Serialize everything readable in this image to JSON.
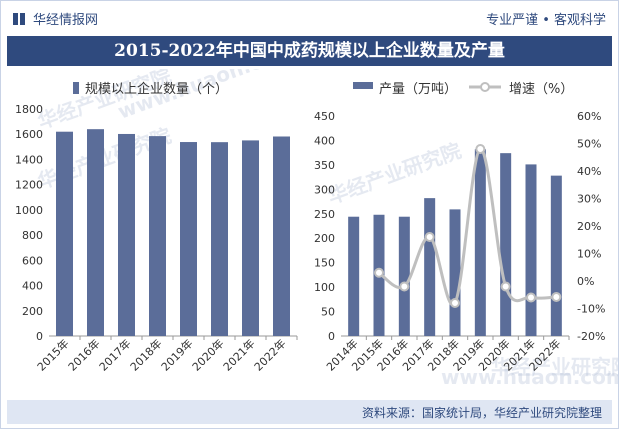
{
  "header": {
    "brand": "华经情报网",
    "slogan": "专业严谨 • 客观科学"
  },
  "title": "2015-2022年中国中成药规模以上企业数量及产量",
  "watermark": [
    "华经产业研究院",
    "www.huaon.com"
  ],
  "footer": "资料来源：国家统计局，华经产业研究院整理",
  "colors": {
    "bar": "#5b6d99",
    "line": "#bfbfbf",
    "header": "#2f4a7e"
  },
  "chart_data": [
    {
      "type": "bar",
      "legend_label": "规模以上企业数量（个）",
      "categories": [
        "2015年",
        "2016年",
        "2017年",
        "2018年",
        "2019年",
        "2020年",
        "2021年",
        "2022年"
      ],
      "series": [
        {
          "name": "规模以上企业数量（个）",
          "values": [
            1620,
            1640,
            1602,
            1585,
            1538,
            1537,
            1551,
            1582
          ]
        }
      ],
      "ylim": [
        0,
        1800
      ],
      "yticks": [
        "0",
        "200",
        "400",
        "600",
        "800",
        "1000",
        "1200",
        "1400",
        "1600",
        "1800"
      ],
      "grid": false,
      "legend": "top-left"
    },
    {
      "type": "bar+line",
      "categories": [
        "2014年",
        "2015年",
        "2016年",
        "2017年",
        "2018年",
        "2019年",
        "2020年",
        "2021年",
        "2022年"
      ],
      "series": [
        {
          "name": "产量（万吨）",
          "type": "bar",
          "axis": "left",
          "values": [
            244,
            248,
            244,
            282,
            259,
            382,
            374,
            351,
            328
          ]
        },
        {
          "name": "增速（%）",
          "type": "line",
          "axis": "right",
          "values": [
            null,
            3.0,
            -2.0,
            16.0,
            -8.0,
            48.0,
            -2.0,
            -6.0,
            -5.8
          ]
        }
      ],
      "ylim_left": [
        0,
        450
      ],
      "yticks_left": [
        "0",
        "50",
        "100",
        "150",
        "200",
        "250",
        "300",
        "350",
        "400",
        "450"
      ],
      "ylim_right": [
        -20,
        60
      ],
      "yticks_right": [
        "-20%",
        "-10%",
        "0%",
        "10%",
        "20%",
        "30%",
        "40%",
        "50%",
        "60%"
      ],
      "grid": false,
      "legend": "top"
    }
  ]
}
